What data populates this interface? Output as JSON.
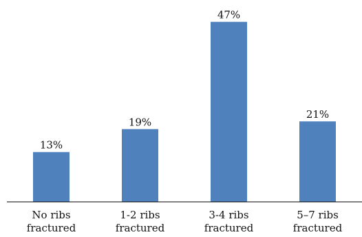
{
  "chart_data": {
    "type": "bar",
    "categories": [
      [
        "No ribs",
        "fractured"
      ],
      [
        "1-2 ribs",
        "fractured"
      ],
      [
        "3-4 ribs",
        "fractured"
      ],
      [
        "5–7 ribs",
        "fractured"
      ]
    ],
    "values": [
      13,
      19,
      47,
      21
    ],
    "data_labels": [
      "13%",
      "19%",
      "47%",
      "21%"
    ],
    "title": "",
    "xlabel": "",
    "ylabel": "",
    "ylim": [
      0,
      50
    ],
    "grid": false,
    "legend": "none",
    "bar_color": "#4F81BD",
    "axis_color": "#000000"
  }
}
